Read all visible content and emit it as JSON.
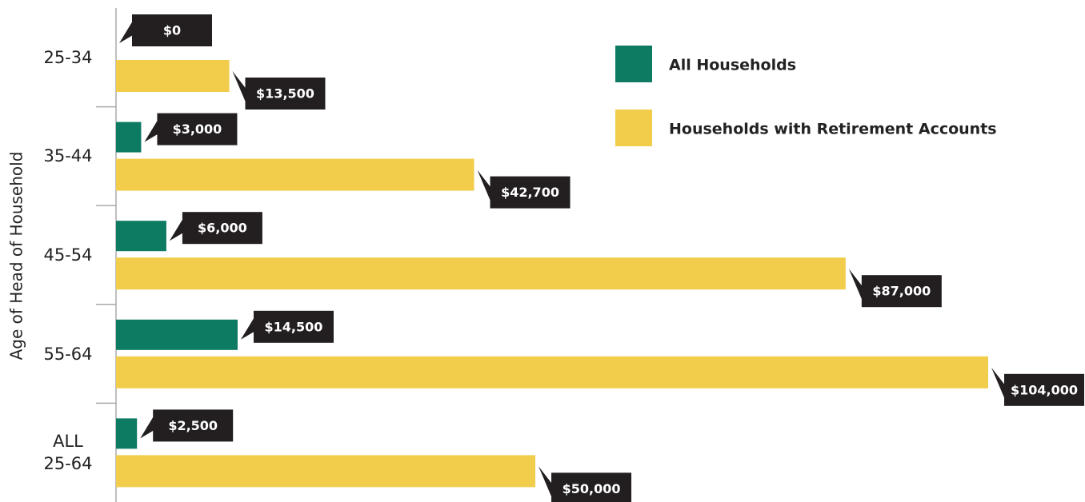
{
  "chart_data": {
    "type": "bar",
    "y_axis_label": "Age of Head of Household",
    "categories": [
      "25-34",
      "35-44",
      "45-54",
      "55-64",
      "ALL\n25-64"
    ],
    "series": [
      {
        "name": "All Households",
        "color": "#0d7a62",
        "values": [
          0,
          3000,
          6000,
          14500,
          2500
        ],
        "value_labels": [
          "$0",
          "$3,000",
          "$6,000",
          "$14,500",
          "$2,500"
        ]
      },
      {
        "name": "Households with Retirement Accounts",
        "color": "#f2cd4b",
        "values": [
          13500,
          42700,
          87000,
          104000,
          50000
        ],
        "value_labels": [
          "$13,500",
          "$42,700",
          "$87,000",
          "$104,000",
          "$50,000"
        ]
      }
    ]
  }
}
